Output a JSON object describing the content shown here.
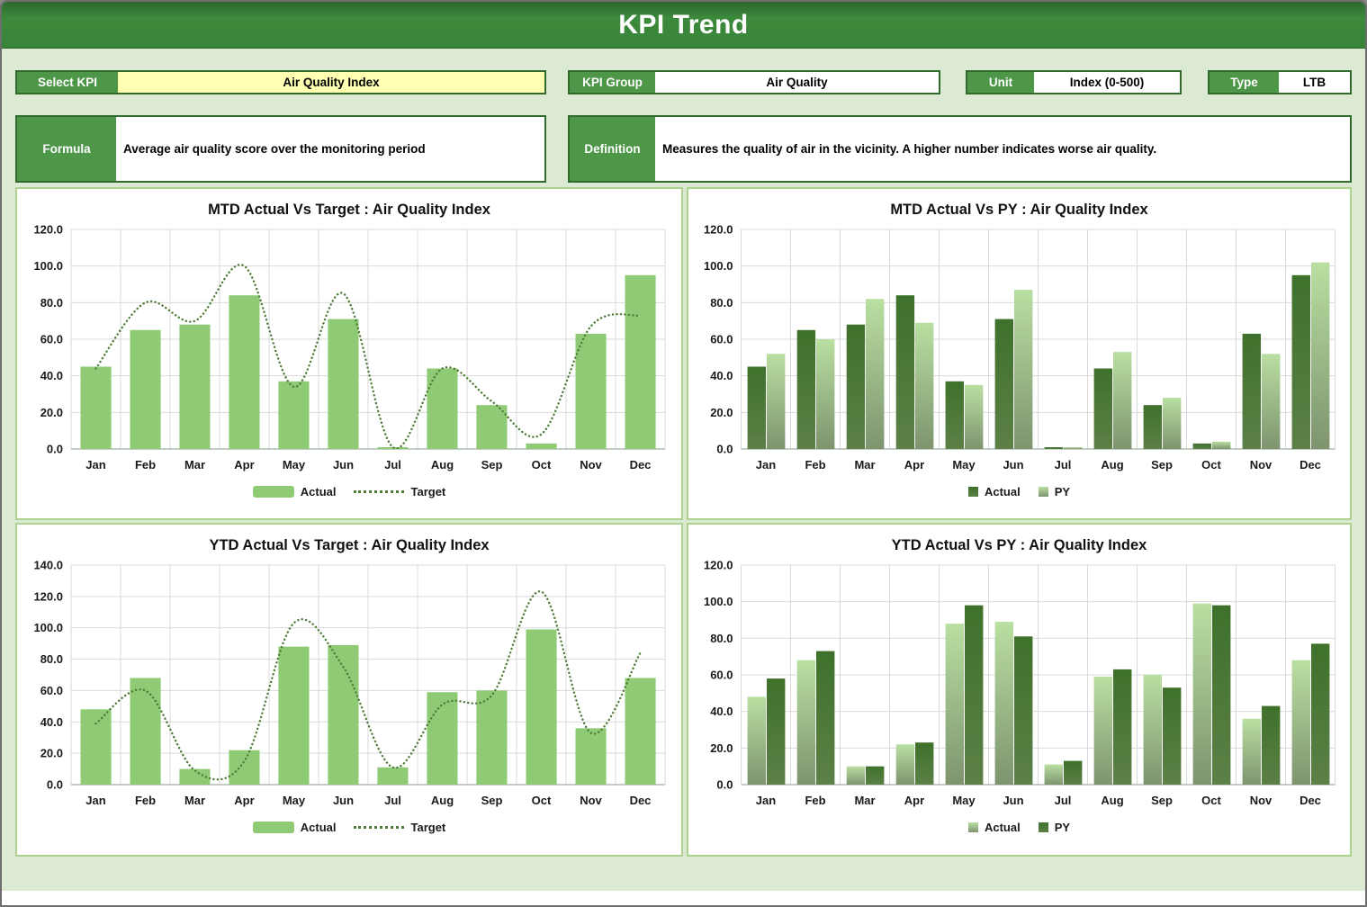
{
  "window": {
    "title": "KPI Trend"
  },
  "controls": {
    "select_kpi": {
      "label": "Select KPI",
      "value": "Air Quality Index"
    },
    "kpi_group": {
      "label": "KPI Group",
      "value": "Air Quality"
    },
    "unit": {
      "label": "Unit",
      "value": "Index (0-500)"
    },
    "type": {
      "label": "Type",
      "value": "LTB"
    },
    "formula": {
      "label": "Formula",
      "value": "Average air quality score over the monitoring period"
    },
    "definition": {
      "label": "Definition",
      "value": "Measures the quality of air in the vicinity. A higher number indicates worse air quality."
    }
  },
  "colors": {
    "header_green": "#3c8a3c",
    "page_background": "#dcead3",
    "label_green": "#4e9749",
    "control_border": "#2f6b2c",
    "select_kpi_yellow": "#feffb0",
    "panel_border": "#aed190",
    "gridline": "#d9d9d9",
    "bar_light_green": "#8fcb74",
    "bar_dark_green_top": "#3e712c",
    "bar_dark_green_bottom": "#5c8046",
    "bar_gradient_light_top": "#b9dfa1",
    "bar_gradient_light_bottom": "#7e946f",
    "target_line_green": "#4f7b38"
  },
  "chart_data": [
    {
      "type": "bar",
      "title": "MTD Actual Vs Target : Air Quality Index",
      "categories": [
        "Jan",
        "Feb",
        "Mar",
        "Apr",
        "May",
        "Jun",
        "Jul",
        "Aug",
        "Sep",
        "Oct",
        "Nov",
        "Dec"
      ],
      "ylim": [
        0,
        120
      ],
      "ystep": 20,
      "tick_decimals": 1,
      "grid": true,
      "legend": "bottom",
      "series": [
        {
          "name": "Actual",
          "kind": "bar",
          "color": "#8fcb74",
          "values": [
            45,
            65,
            68,
            84,
            37,
            71,
            1,
            44,
            24,
            3,
            63,
            95
          ]
        },
        {
          "name": "Target",
          "kind": "line",
          "color": "#4f7b38",
          "style": "dotted-smooth",
          "values": [
            44,
            80,
            70,
            100,
            34,
            85,
            1,
            44,
            26,
            8,
            67,
            73
          ]
        }
      ]
    },
    {
      "type": "bar",
      "title": "MTD Actual Vs PY : Air Quality Index",
      "categories": [
        "Jan",
        "Feb",
        "Mar",
        "Apr",
        "May",
        "Jun",
        "Jul",
        "Aug",
        "Sep",
        "Oct",
        "Nov",
        "Dec"
      ],
      "ylim": [
        0,
        120
      ],
      "ystep": 20,
      "tick_decimals": 1,
      "grid": true,
      "legend": "bottom",
      "series": [
        {
          "name": "Actual",
          "kind": "bar",
          "color_top": "#3e712c",
          "color_bottom": "#5c8046",
          "values": [
            45,
            65,
            68,
            84,
            37,
            71,
            1,
            44,
            24,
            3,
            63,
            95
          ]
        },
        {
          "name": "PY",
          "kind": "bar",
          "color_top": "#b9dfa1",
          "color_bottom": "#7e946f",
          "values": [
            52,
            60,
            82,
            69,
            35,
            87,
            1,
            53,
            28,
            4,
            52,
            102
          ]
        }
      ]
    },
    {
      "type": "bar",
      "title": "YTD Actual Vs Target : Air Quality Index",
      "categories": [
        "Jan",
        "Feb",
        "Mar",
        "Apr",
        "May",
        "Jun",
        "Jul",
        "Aug",
        "Sep",
        "Oct",
        "Nov",
        "Dec"
      ],
      "ylim": [
        0,
        140
      ],
      "ystep": 20,
      "tick_decimals": 1,
      "grid": true,
      "legend": "bottom",
      "series": [
        {
          "name": "Actual",
          "kind": "bar",
          "color": "#8fcb74",
          "values": [
            48,
            68,
            10,
            22,
            88,
            89,
            11,
            59,
            60,
            99,
            36,
            68
          ]
        },
        {
          "name": "Target",
          "kind": "line",
          "color": "#4f7b38",
          "style": "dotted-smooth",
          "values": [
            39,
            60,
            9,
            15,
            103,
            75,
            11,
            51,
            57,
            123,
            33,
            84
          ]
        }
      ]
    },
    {
      "type": "bar",
      "title": "YTD Actual Vs PY : Air Quality Index",
      "categories": [
        "Jan",
        "Feb",
        "Mar",
        "Apr",
        "May",
        "Jun",
        "Jul",
        "Aug",
        "Sep",
        "Oct",
        "Nov",
        "Dec"
      ],
      "ylim": [
        0,
        120
      ],
      "ystep": 20,
      "tick_decimals": 1,
      "grid": true,
      "legend": "bottom",
      "series": [
        {
          "name": "Actual",
          "kind": "bar",
          "color_top": "#b9dfa1",
          "color_bottom": "#7e946f",
          "values": [
            48,
            68,
            10,
            22,
            88,
            89,
            11,
            59,
            60,
            99,
            36,
            68
          ]
        },
        {
          "name": "PY",
          "kind": "bar",
          "color_top": "#3e712c",
          "color_bottom": "#5c8046",
          "values": [
            58,
            73,
            10,
            23,
            98,
            81,
            13,
            63,
            53,
            98,
            43,
            77
          ]
        }
      ]
    }
  ]
}
